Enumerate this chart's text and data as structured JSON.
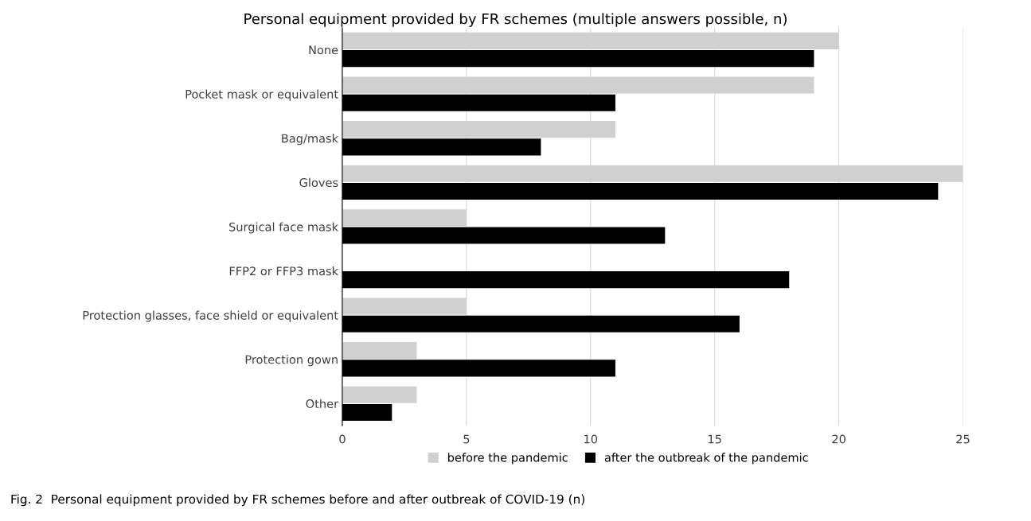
{
  "chart_data": {
    "type": "bar",
    "orientation": "horizontal",
    "title": "Personal equipment provided by FR schemes (multiple answers possible, n)",
    "categories": [
      "None",
      "Pocket mask or equivalent",
      "Bag/mask",
      "Gloves",
      "Surgical face mask",
      "FFP2 or FFP3 mask",
      "Protection glasses, face shield or equivalent",
      "Protection gown",
      "Other"
    ],
    "series": [
      {
        "name": "before the pandemic",
        "color": "#d0d0d0",
        "values": [
          20,
          19,
          11,
          25,
          5,
          0,
          5,
          3,
          3
        ]
      },
      {
        "name": "after the outbreak of the pandemic",
        "color": "#000000",
        "values": [
          19,
          11,
          8,
          24,
          13,
          18,
          16,
          11,
          2
        ]
      }
    ],
    "xlim": [
      0,
      25
    ],
    "xticks": [
      0,
      5,
      10,
      15,
      20,
      25
    ],
    "grid": "x",
    "legend": "bottom",
    "annotations": [
      "Fig. 2  Personal equipment provided by FR schemes before and after outbreak of COVID-19 (n)"
    ]
  }
}
